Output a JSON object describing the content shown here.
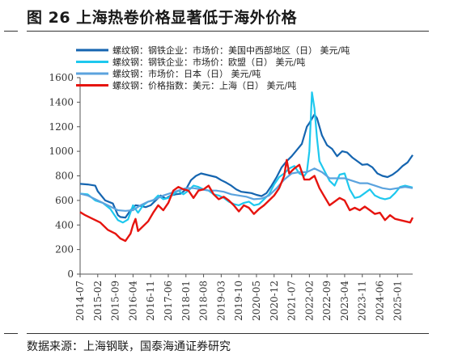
{
  "title": "图 26  上海热卷价格显著低于海外价格",
  "source": "数据来源：上海钢联，国泰海通证券研究",
  "chart_data": {
    "type": "line",
    "title": "图 26  上海热卷价格显著低于海外价格",
    "xlabel": "",
    "ylabel": "",
    "ylim": [
      0,
      1600
    ],
    "yticks": [
      0,
      200,
      400,
      600,
      800,
      1000,
      1200,
      1400,
      1600
    ],
    "xticks": [
      "2014-07",
      "2015-02",
      "2015-09",
      "2016-04",
      "2016-11",
      "2017-06",
      "2018-01",
      "2018-08",
      "2019-03",
      "2019-10",
      "2020-05",
      "2020-12",
      "2021-07",
      "2022-02",
      "2022-09",
      "2023-04",
      "2023-11",
      "2024-06",
      "2025-01"
    ],
    "xrange": [
      "2014-07",
      "2025-07"
    ],
    "grid": false,
    "legend_position": "top-left",
    "series": [
      {
        "name": "螺纹钢：钢铁企业：市场价：美国中西部地区（日） 美元/吨",
        "color": "#1565b0",
        "points": [
          [
            "2014-07",
            735
          ],
          [
            "2014-10",
            730
          ],
          [
            "2015-01",
            720
          ],
          [
            "2015-02",
            675
          ],
          [
            "2015-05",
            600
          ],
          [
            "2015-08",
            575
          ],
          [
            "2015-10",
            480
          ],
          [
            "2015-11",
            465
          ],
          [
            "2016-01",
            460
          ],
          [
            "2016-03",
            520
          ],
          [
            "2016-05",
            560
          ],
          [
            "2016-07",
            555
          ],
          [
            "2016-09",
            545
          ],
          [
            "2016-11",
            560
          ],
          [
            "2017-01",
            600
          ],
          [
            "2017-03",
            640
          ],
          [
            "2017-05",
            615
          ],
          [
            "2017-07",
            640
          ],
          [
            "2017-09",
            650
          ],
          [
            "2017-11",
            655
          ],
          [
            "2018-01",
            690
          ],
          [
            "2018-03",
            765
          ],
          [
            "2018-05",
            800
          ],
          [
            "2018-07",
            820
          ],
          [
            "2018-09",
            810
          ],
          [
            "2018-11",
            800
          ],
          [
            "2019-01",
            790
          ],
          [
            "2019-03",
            765
          ],
          [
            "2019-05",
            745
          ],
          [
            "2019-07",
            720
          ],
          [
            "2019-09",
            690
          ],
          [
            "2019-11",
            670
          ],
          [
            "2020-01",
            665
          ],
          [
            "2020-03",
            660
          ],
          [
            "2020-05",
            645
          ],
          [
            "2020-07",
            635
          ],
          [
            "2020-09",
            660
          ],
          [
            "2020-11",
            720
          ],
          [
            "2021-01",
            790
          ],
          [
            "2021-03",
            870
          ],
          [
            "2021-05",
            920
          ],
          [
            "2021-07",
            960
          ],
          [
            "2021-09",
            1010
          ],
          [
            "2021-11",
            1060
          ],
          [
            "2022-01",
            1200
          ],
          [
            "2022-02",
            1230
          ],
          [
            "2022-04",
            1300
          ],
          [
            "2022-05",
            1270
          ],
          [
            "2022-07",
            1130
          ],
          [
            "2022-09",
            1050
          ],
          [
            "2022-11",
            1020
          ],
          [
            "2023-01",
            960
          ],
          [
            "2023-03",
            1000
          ],
          [
            "2023-05",
            990
          ],
          [
            "2023-07",
            950
          ],
          [
            "2023-09",
            920
          ],
          [
            "2023-11",
            890
          ],
          [
            "2024-01",
            895
          ],
          [
            "2024-03",
            870
          ],
          [
            "2024-05",
            820
          ],
          [
            "2024-07",
            800
          ],
          [
            "2024-09",
            790
          ],
          [
            "2024-11",
            810
          ],
          [
            "2025-01",
            840
          ],
          [
            "2025-03",
            880
          ],
          [
            "2025-05",
            910
          ],
          [
            "2025-07",
            970
          ]
        ]
      },
      {
        "name": "螺纹钢：钢铁企业：市场价：欧盟（日） 美元/吨",
        "color": "#1ec8ee",
        "points": [
          [
            "2014-07",
            655
          ],
          [
            "2014-10",
            650
          ],
          [
            "2015-01",
            600
          ],
          [
            "2015-04",
            580
          ],
          [
            "2015-07",
            530
          ],
          [
            "2015-10",
            440
          ],
          [
            "2015-12",
            420
          ],
          [
            "2016-02",
            445
          ],
          [
            "2016-04",
            560
          ],
          [
            "2016-06",
            500
          ],
          [
            "2016-08",
            560
          ],
          [
            "2016-10",
            590
          ],
          [
            "2016-12",
            600
          ],
          [
            "2017-02",
            640
          ],
          [
            "2017-04",
            610
          ],
          [
            "2017-06",
            620
          ],
          [
            "2017-08",
            650
          ],
          [
            "2017-10",
            680
          ],
          [
            "2017-12",
            650
          ],
          [
            "2018-02",
            680
          ],
          [
            "2018-04",
            720
          ],
          [
            "2018-06",
            710
          ],
          [
            "2018-08",
            690
          ],
          [
            "2018-10",
            680
          ],
          [
            "2018-12",
            650
          ],
          [
            "2019-02",
            640
          ],
          [
            "2019-04",
            620
          ],
          [
            "2019-06",
            590
          ],
          [
            "2019-08",
            570
          ],
          [
            "2019-10",
            560
          ],
          [
            "2019-12",
            580
          ],
          [
            "2020-02",
            590
          ],
          [
            "2020-04",
            560
          ],
          [
            "2020-06",
            570
          ],
          [
            "2020-08",
            610
          ],
          [
            "2020-10",
            650
          ],
          [
            "2020-12",
            730
          ],
          [
            "2021-02",
            790
          ],
          [
            "2021-04",
            820
          ],
          [
            "2021-06",
            860
          ],
          [
            "2021-08",
            880
          ],
          [
            "2021-10",
            820
          ],
          [
            "2021-12",
            800
          ],
          [
            "2022-01",
            830
          ],
          [
            "2022-02",
            1000
          ],
          [
            "2022-03",
            1480
          ],
          [
            "2022-04",
            1350
          ],
          [
            "2022-05",
            1110
          ],
          [
            "2022-06",
            920
          ],
          [
            "2022-08",
            840
          ],
          [
            "2022-10",
            760
          ],
          [
            "2022-12",
            720
          ],
          [
            "2023-02",
            810
          ],
          [
            "2023-04",
            820
          ],
          [
            "2023-06",
            690
          ],
          [
            "2023-08",
            620
          ],
          [
            "2023-10",
            630
          ],
          [
            "2023-12",
            660
          ],
          [
            "2024-02",
            690
          ],
          [
            "2024-04",
            640
          ],
          [
            "2024-06",
            620
          ],
          [
            "2024-08",
            610
          ],
          [
            "2024-10",
            620
          ],
          [
            "2024-12",
            660
          ],
          [
            "2025-02",
            710
          ],
          [
            "2025-04",
            720
          ],
          [
            "2025-07",
            705
          ]
        ]
      },
      {
        "name": "螺纹钢：市场价：日本（日） 美元/吨",
        "color": "#5ba3de",
        "points": [
          [
            "2014-07",
            655
          ],
          [
            "2014-10",
            640
          ],
          [
            "2015-01",
            610
          ],
          [
            "2015-04",
            580
          ],
          [
            "2015-07",
            550
          ],
          [
            "2015-10",
            520
          ],
          [
            "2016-01",
            515
          ],
          [
            "2016-04",
            520
          ],
          [
            "2016-07",
            560
          ],
          [
            "2016-10",
            590
          ],
          [
            "2017-01",
            610
          ],
          [
            "2017-04",
            640
          ],
          [
            "2017-07",
            660
          ],
          [
            "2017-10",
            680
          ],
          [
            "2018-01",
            700
          ],
          [
            "2018-04",
            700
          ],
          [
            "2018-07",
            690
          ],
          [
            "2018-10",
            680
          ],
          [
            "2019-01",
            680
          ],
          [
            "2019-04",
            670
          ],
          [
            "2019-07",
            650
          ],
          [
            "2019-10",
            640
          ],
          [
            "2020-01",
            630
          ],
          [
            "2020-04",
            610
          ],
          [
            "2020-07",
            615
          ],
          [
            "2020-10",
            640
          ],
          [
            "2021-01",
            700
          ],
          [
            "2021-04",
            770
          ],
          [
            "2021-07",
            820
          ],
          [
            "2021-10",
            830
          ],
          [
            "2022-01",
            830
          ],
          [
            "2022-04",
            860
          ],
          [
            "2022-07",
            830
          ],
          [
            "2022-10",
            780
          ],
          [
            "2023-01",
            780
          ],
          [
            "2023-04",
            780
          ],
          [
            "2023-07",
            760
          ],
          [
            "2023-10",
            740
          ],
          [
            "2024-01",
            740
          ],
          [
            "2024-04",
            720
          ],
          [
            "2024-07",
            700
          ],
          [
            "2024-10",
            690
          ],
          [
            "2025-01",
            700
          ],
          [
            "2025-04",
            710
          ],
          [
            "2025-07",
            700
          ]
        ]
      },
      {
        "name": "螺纹钢：价格指数：美元：上海（日） 美元/吨",
        "color": "#e6140f",
        "points": [
          [
            "2014-07",
            505
          ],
          [
            "2014-09",
            480
          ],
          [
            "2014-12",
            450
          ],
          [
            "2015-03",
            420
          ],
          [
            "2015-06",
            360
          ],
          [
            "2015-09",
            330
          ],
          [
            "2015-11",
            290
          ],
          [
            "2016-01",
            270
          ],
          [
            "2016-03",
            330
          ],
          [
            "2016-04",
            400
          ],
          [
            "2016-05",
            450
          ],
          [
            "2016-06",
            350
          ],
          [
            "2016-08",
            390
          ],
          [
            "2016-10",
            430
          ],
          [
            "2016-12",
            500
          ],
          [
            "2017-02",
            560
          ],
          [
            "2017-04",
            520
          ],
          [
            "2017-06",
            580
          ],
          [
            "2017-08",
            680
          ],
          [
            "2017-10",
            710
          ],
          [
            "2017-12",
            690
          ],
          [
            "2018-02",
            680
          ],
          [
            "2018-04",
            620
          ],
          [
            "2018-06",
            680
          ],
          [
            "2018-08",
            690
          ],
          [
            "2018-10",
            720
          ],
          [
            "2018-12",
            650
          ],
          [
            "2019-02",
            610
          ],
          [
            "2019-04",
            630
          ],
          [
            "2019-06",
            600
          ],
          [
            "2019-08",
            560
          ],
          [
            "2019-10",
            510
          ],
          [
            "2019-12",
            560
          ],
          [
            "2020-02",
            540
          ],
          [
            "2020-04",
            490
          ],
          [
            "2020-06",
            530
          ],
          [
            "2020-08",
            560
          ],
          [
            "2020-10",
            600
          ],
          [
            "2020-12",
            640
          ],
          [
            "2021-02",
            700
          ],
          [
            "2021-04",
            800
          ],
          [
            "2021-05",
            930
          ],
          [
            "2021-06",
            820
          ],
          [
            "2021-08",
            860
          ],
          [
            "2021-10",
            890
          ],
          [
            "2021-12",
            770
          ],
          [
            "2022-02",
            770
          ],
          [
            "2022-04",
            800
          ],
          [
            "2022-06",
            700
          ],
          [
            "2022-08",
            630
          ],
          [
            "2022-10",
            560
          ],
          [
            "2022-12",
            590
          ],
          [
            "2023-02",
            620
          ],
          [
            "2023-04",
            600
          ],
          [
            "2023-06",
            520
          ],
          [
            "2023-08",
            540
          ],
          [
            "2023-10",
            520
          ],
          [
            "2023-12",
            550
          ],
          [
            "2024-02",
            520
          ],
          [
            "2024-04",
            490
          ],
          [
            "2024-06",
            500
          ],
          [
            "2024-08",
            440
          ],
          [
            "2024-10",
            480
          ],
          [
            "2024-12",
            450
          ],
          [
            "2025-02",
            440
          ],
          [
            "2025-04",
            430
          ],
          [
            "2025-06",
            420
          ],
          [
            "2025-07",
            460
          ]
        ]
      }
    ]
  }
}
